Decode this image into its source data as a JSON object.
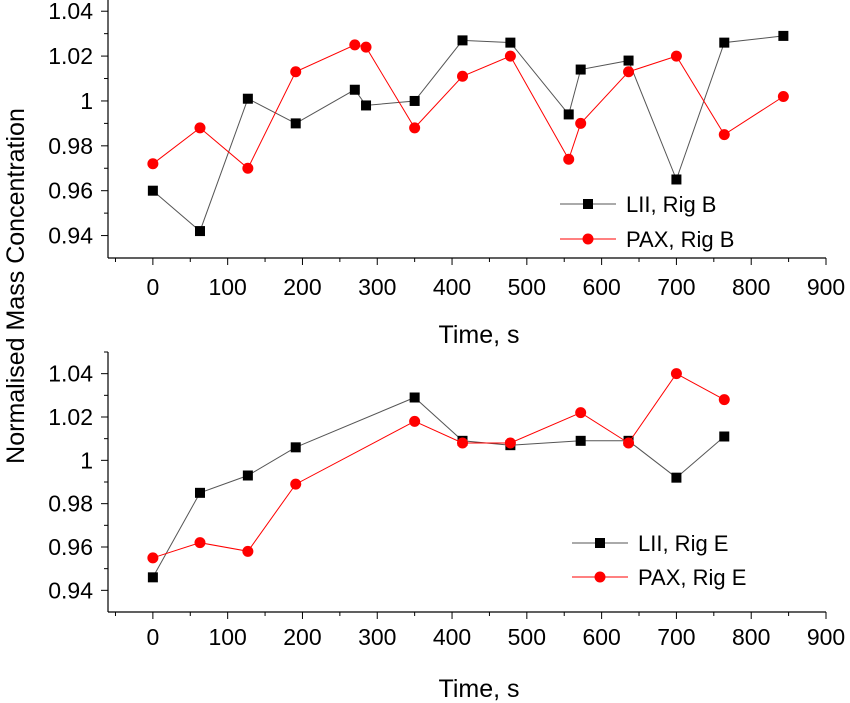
{
  "chart_data": [
    {
      "type": "line",
      "panel": "top",
      "xlabel": "Time, s",
      "ylabel": "Normalised Mass Concentration",
      "xlim": [
        -60,
        900
      ],
      "ylim": [
        0.93,
        1.045
      ],
      "xticks": [
        0,
        100,
        200,
        300,
        400,
        500,
        600,
        700,
        800,
        900
      ],
      "yticks": [
        0.94,
        0.96,
        0.98,
        1.0,
        1.02,
        1.04
      ],
      "ytick_labels": [
        "0.94",
        "0.96",
        "0.98",
        "1",
        "1.02",
        "1.04"
      ],
      "grid": false,
      "legend_position": "bottom-right",
      "series": [
        {
          "name": "LII, Rig B",
          "color": "#000000",
          "marker": "square",
          "x": [
            0,
            63,
            127,
            191,
            270,
            285,
            350,
            414,
            478,
            556,
            572,
            636,
            700,
            764,
            843
          ],
          "y": [
            0.96,
            0.942,
            1.001,
            0.99,
            1.005,
            0.998,
            1.0,
            1.027,
            1.026,
            0.994,
            1.014,
            1.018,
            0.965,
            1.026,
            1.029
          ]
        },
        {
          "name": "PAX, Rig B",
          "color": "#ff0000",
          "marker": "circle",
          "x": [
            0,
            63,
            127,
            191,
            270,
            285,
            350,
            414,
            478,
            556,
            572,
            636,
            700,
            764,
            843
          ],
          "y": [
            0.972,
            0.988,
            0.97,
            1.013,
            1.025,
            1.024,
            0.988,
            1.011,
            1.02,
            0.974,
            0.99,
            1.013,
            1.02,
            0.985,
            1.002
          ]
        }
      ]
    },
    {
      "type": "line",
      "panel": "bottom",
      "xlabel": "Time, s",
      "ylabel": "",
      "xlim": [
        -60,
        900
      ],
      "ylim": [
        0.93,
        1.05
      ],
      "xticks": [
        0,
        100,
        200,
        300,
        400,
        500,
        600,
        700,
        800,
        900
      ],
      "yticks": [
        0.94,
        0.96,
        0.98,
        1.0,
        1.02,
        1.04
      ],
      "ytick_labels": [
        "0.94",
        "0.96",
        "0.98",
        "1",
        "1.02",
        "1.04"
      ],
      "grid": false,
      "legend_position": "bottom-right",
      "series": [
        {
          "name": "LII, Rig E",
          "color": "#000000",
          "marker": "square",
          "x": [
            0,
            63,
            127,
            191,
            350,
            414,
            478,
            572,
            636,
            700,
            764
          ],
          "y": [
            0.946,
            0.985,
            0.993,
            1.006,
            1.029,
            1.009,
            1.007,
            1.009,
            1.009,
            0.992,
            1.011
          ]
        },
        {
          "name": "PAX, Rig E",
          "color": "#ff0000",
          "marker": "circle",
          "x": [
            0,
            63,
            127,
            191,
            350,
            414,
            478,
            572,
            636,
            700,
            764
          ],
          "y": [
            0.955,
            0.962,
            0.958,
            0.989,
            1.018,
            1.008,
            1.008,
            1.022,
            1.008,
            1.04,
            1.028
          ]
        }
      ]
    }
  ]
}
